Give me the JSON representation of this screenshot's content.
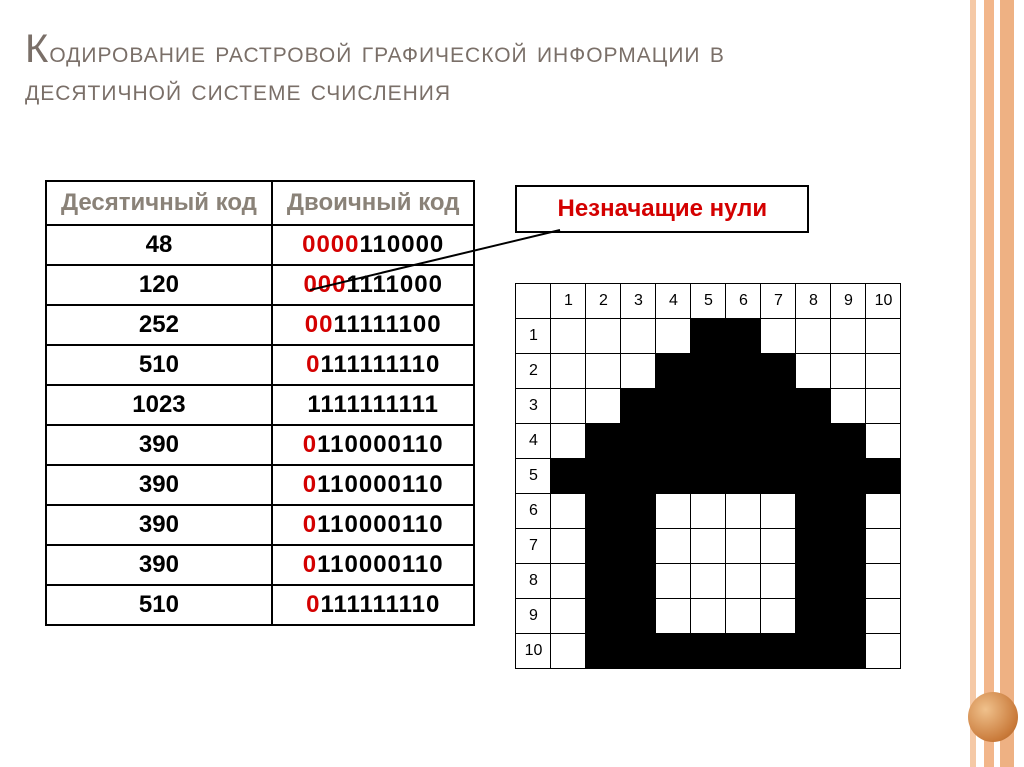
{
  "title_text": "Кодирование растровой графической информации в десятичной системе счисления",
  "label_box": "Незначащие нули",
  "table": {
    "headers": {
      "col1": "Десятичный код",
      "col2": "Двоичный код"
    },
    "rows": [
      {
        "dec": "48",
        "bin": "0000110000",
        "leading_zeros": 4
      },
      {
        "dec": "120",
        "bin": "0001111000",
        "leading_zeros": 3
      },
      {
        "dec": "252",
        "bin": "0011111100",
        "leading_zeros": 2
      },
      {
        "dec": "510",
        "bin": "0111111110",
        "leading_zeros": 1
      },
      {
        "dec": "1023",
        "bin": "1111111111",
        "leading_zeros": 0
      },
      {
        "dec": "390",
        "bin": "0110000110",
        "leading_zeros": 1
      },
      {
        "dec": "390",
        "bin": "0110000110",
        "leading_zeros": 1
      },
      {
        "dec": "390",
        "bin": "0110000110",
        "leading_zeros": 1
      },
      {
        "dec": "390",
        "bin": "0110000110",
        "leading_zeros": 1
      },
      {
        "dec": "510",
        "bin": "0111111110",
        "leading_zeros": 1
      }
    ]
  },
  "grid": {
    "cols": 10,
    "rows": 10,
    "col_labels": [
      "1",
      "2",
      "3",
      "4",
      "5",
      "6",
      "7",
      "8",
      "9",
      "10"
    ],
    "row_labels": [
      "1",
      "2",
      "3",
      "4",
      "5",
      "6",
      "7",
      "8",
      "9",
      "10"
    ],
    "pattern": [
      "0000110000",
      "0001111000",
      "0011111100",
      "0111111110",
      "1111111111",
      "0110000110",
      "0110000110",
      "0110000110",
      "0110000110",
      "0111111110"
    ]
  },
  "colors": {
    "title_color": "#7a6f68",
    "highlight_red": "#d40000",
    "grid_fill": "#000000",
    "grid_empty": "#ffffff",
    "border": "#000000"
  },
  "typography": {
    "title_fontsize": 30,
    "title_first_fontsize": 40,
    "table_fontsize": 24,
    "grid_label_fontsize": 16
  }
}
